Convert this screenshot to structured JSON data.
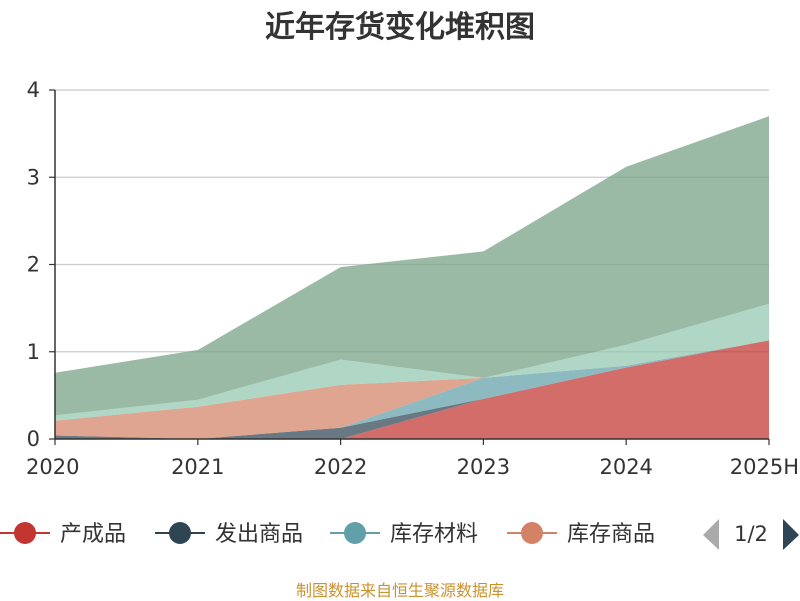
{
  "title": "近年存货变化堆积图",
  "footer": "制图数据来自恒生聚源数据库",
  "legend": {
    "items": [
      {
        "name": "产成品",
        "color": "#c23531"
      },
      {
        "name": "发出商品",
        "color": "#2f4554"
      },
      {
        "name": "库存材料",
        "color": "#61a0a8"
      },
      {
        "name": "库存商品",
        "color": "#d48265"
      }
    ],
    "page": "1/2"
  },
  "chart_data": {
    "type": "area",
    "stacked": true,
    "title": "近年存货变化堆积图",
    "categories": [
      "2020",
      "2021",
      "2022",
      "2023",
      "2024",
      "2025H"
    ],
    "ylim": [
      0,
      4
    ],
    "yticks": [
      0,
      1,
      2,
      3,
      4
    ],
    "grid": true,
    "legend_position": "bottom",
    "series": [
      {
        "name": "产成品",
        "color": "#c23531",
        "values": [
          0,
          0,
          0,
          0.46,
          0.82,
          1.13
        ]
      },
      {
        "name": "发出商品",
        "color": "#2f4554",
        "values": [
          0.04,
          0,
          0.13,
          0,
          0,
          0
        ]
      },
      {
        "name": "库存材料",
        "color": "#61a0a8",
        "values": [
          0,
          0,
          0,
          0.24,
          0.02,
          0
        ]
      },
      {
        "color": "#d48265",
        "values": [
          0.17,
          0.37,
          0.49,
          0,
          0,
          0
        ]
      },
      {
        "color": "#91c7ae",
        "values": [
          0.06,
          0.08,
          0.29,
          0,
          0.24,
          0.42
        ]
      },
      {
        "color": "#749f83",
        "values": [
          0.49,
          0.57,
          1.06,
          1.45,
          2.04,
          2.15
        ]
      }
    ]
  }
}
